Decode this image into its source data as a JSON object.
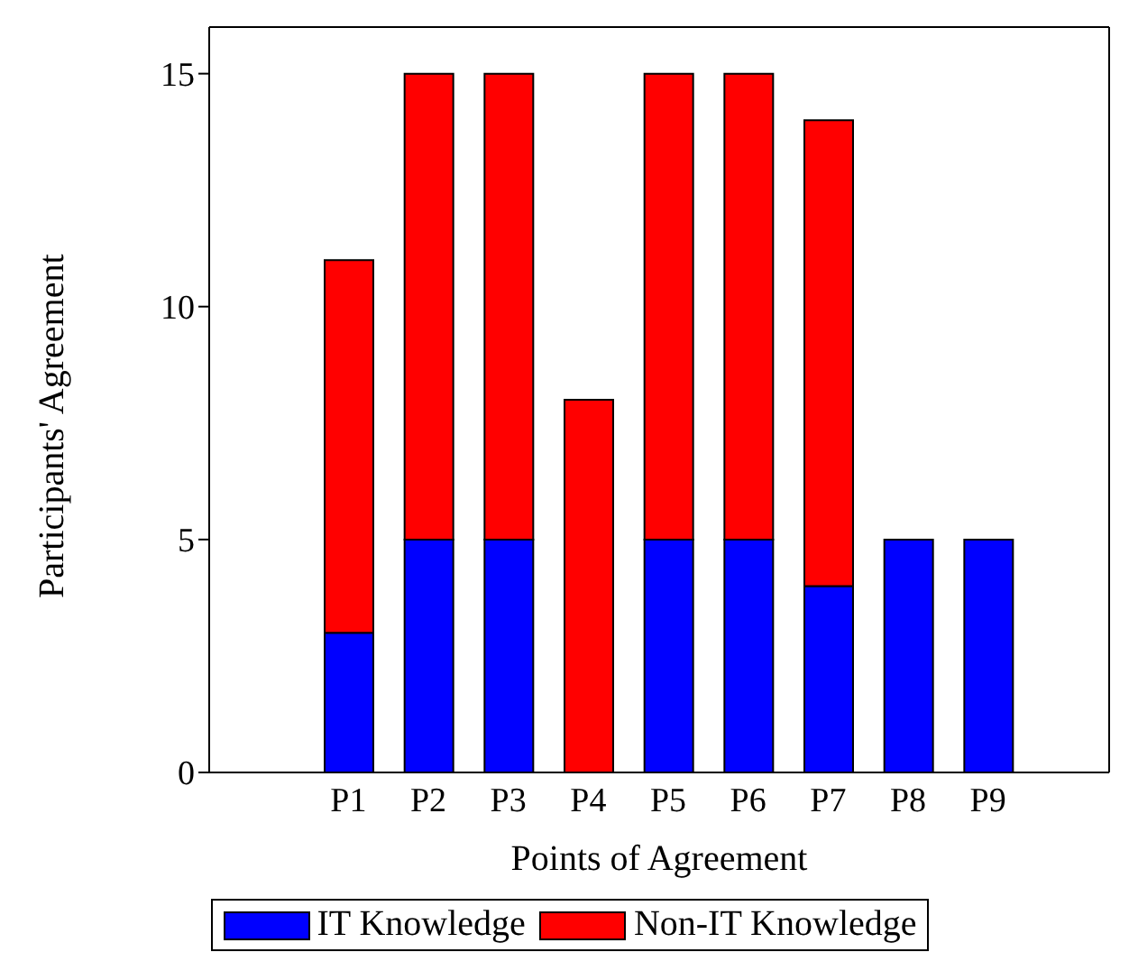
{
  "chart_data": {
    "type": "bar",
    "stacked": true,
    "xlabel": "Points of Agreement",
    "ylabel": "Participants' Agreement",
    "categories": [
      "P1",
      "P2",
      "P3",
      "P4",
      "P5",
      "P6",
      "P7",
      "P8",
      "P9"
    ],
    "series": [
      {
        "name": "IT Knowledge",
        "color": "#0000ff",
        "values": [
          3,
          5,
          5,
          0,
          5,
          5,
          4,
          5,
          5
        ]
      },
      {
        "name": "Non-IT Knowledge",
        "color": "#ff0000",
        "values": [
          8,
          10,
          10,
          8,
          10,
          10,
          10,
          0,
          0
        ]
      }
    ],
    "ylim": [
      0,
      16
    ],
    "yticks": [
      0,
      5,
      10,
      15
    ],
    "grid": false,
    "legend": "bottom"
  }
}
